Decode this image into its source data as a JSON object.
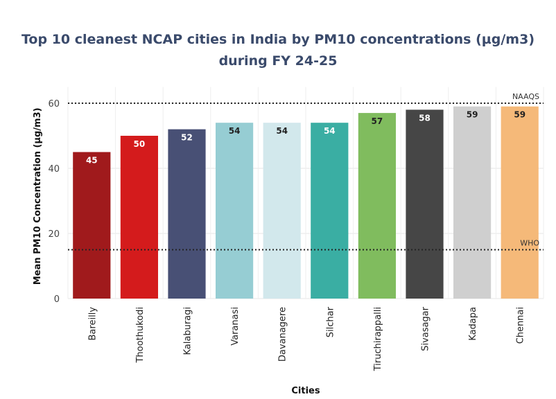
{
  "chart_data": {
    "type": "bar",
    "title_line1": "Top 10 cleanest NCAP cities in India by PM10 concentrations (µg/m3)",
    "title_line2": "during FY 24-25",
    "xlabel": "Cities",
    "ylabel": "Mean PM10 Concentration (µg/m3)",
    "ylim": [
      0,
      62
    ],
    "yticks": [
      0,
      20,
      40,
      60
    ],
    "categories": [
      "Bareilly",
      "Thoothukodi",
      "Kalaburagi",
      "Varanasi",
      "Davanagere",
      "Silchar",
      "Tiruchirappalli",
      "Sivasagar",
      "Kadapa",
      "Chennai"
    ],
    "values": [
      45,
      50,
      52,
      54,
      54,
      54,
      57,
      58,
      59,
      59
    ],
    "colors": [
      "#a01a1c",
      "#d41b1c",
      "#485075",
      "#96cdd3",
      "#d2e8ec",
      "#3aaea3",
      "#80bc5e",
      "#464646",
      "#cfcfcf",
      "#f5b979"
    ],
    "label_colors": [
      "#ffffff",
      "#ffffff",
      "#ffffff",
      "#222222",
      "#222222",
      "#ffffff",
      "#222222",
      "#ffffff",
      "#222222",
      "#222222"
    ],
    "reference_lines": [
      {
        "label": "NAAQS",
        "value": 60
      },
      {
        "label": "WHO",
        "value": 15
      }
    ],
    "grid": true,
    "legend": "none"
  }
}
